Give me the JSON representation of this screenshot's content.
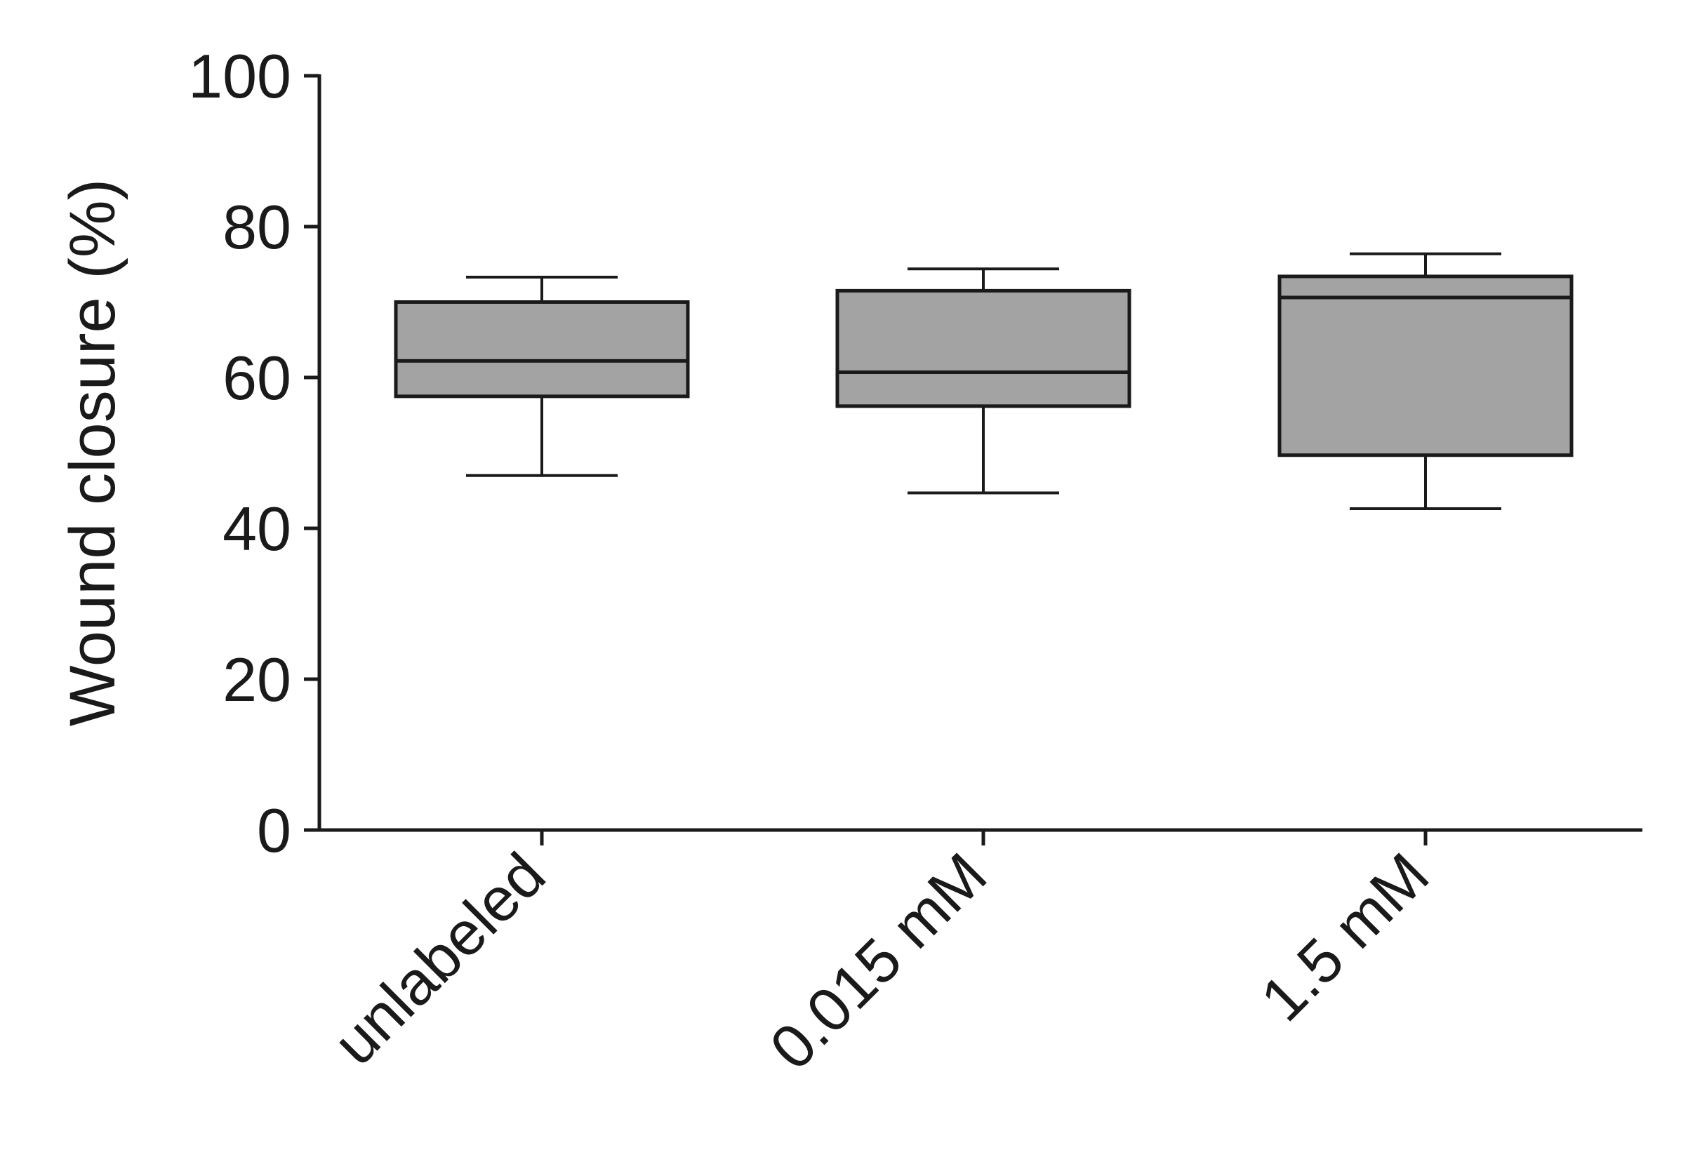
{
  "chart_data": {
    "type": "box",
    "ylabel": "Wound closure (%)",
    "xlabel": "",
    "ylim": [
      0,
      100
    ],
    "yticks": [
      0,
      20,
      40,
      60,
      80,
      100
    ],
    "categories": [
      "unlabeled",
      "0.015 mM",
      "1.5 mM"
    ],
    "boxes": [
      {
        "min": 47,
        "q1": 57.5,
        "median": 62.2,
        "q3": 70,
        "max": 73.3
      },
      {
        "min": 44.7,
        "q1": 56.2,
        "median": 60.7,
        "q3": 71.5,
        "max": 74.4
      },
      {
        "min": 42.6,
        "q1": 49.7,
        "median": 70.6,
        "q3": 73.4,
        "max": 76.4
      }
    ],
    "colors": {
      "box_fill": "#a3a3a3",
      "line": "#1a1a1a"
    },
    "grid": false,
    "legend": "none"
  }
}
